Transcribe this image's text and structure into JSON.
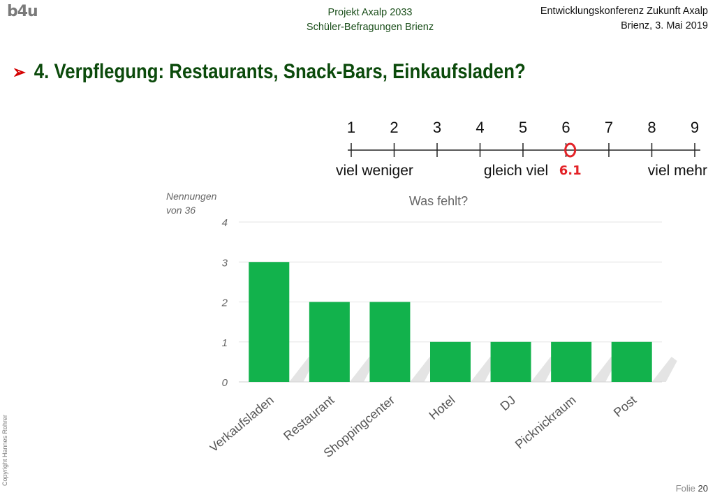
{
  "header": {
    "logo": "b4u",
    "center_line1": "Projekt Axalp 2033",
    "center_line2": "Schüler-Befragungen Brienz",
    "right_line1": "Entwicklungskonferenz Zukunft Axalp",
    "right_line2": "Brienz, 3. Mai 2019"
  },
  "slide_title": "4. Verpflegung: Restaurants, Snack-Bars, Einkaufsladen?",
  "scale": {
    "ticks": [
      "1",
      "2",
      "3",
      "4",
      "5",
      "6",
      "7",
      "8",
      "9"
    ],
    "label_low": "viel weniger",
    "label_mid": "gleich viel",
    "label_high": "viel mehr",
    "marker_value": 6.1,
    "marker_label": "6.1",
    "marker_color": "#e32227"
  },
  "y_caption_line1": "Nennungen",
  "y_caption_line2": "von 36",
  "chart_data": {
    "type": "bar",
    "title": "Was fehlt?",
    "categories": [
      "Verkaufsladen",
      "Restaurant",
      "Shoppingcenter",
      "Hotel",
      "DJ",
      "Picknickraum",
      "Post"
    ],
    "values": [
      3,
      2,
      2,
      1,
      1,
      1,
      1
    ],
    "ylim": [
      0,
      4
    ],
    "yticks": [
      "0",
      "1",
      "2",
      "3",
      "4"
    ],
    "grid": true,
    "bar_color": "#12b24c"
  },
  "footer": {
    "copyright": "Copyright Hannes Rohrer",
    "folio_label": "Folie",
    "folio_number": "20"
  }
}
